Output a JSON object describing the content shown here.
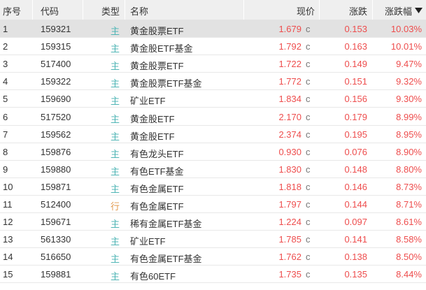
{
  "header": {
    "seq": "序号",
    "code": "代码",
    "type": "类型",
    "name": "名称",
    "price": "现价",
    "change": "涨跌",
    "pct": "涨跌幅",
    "sort_icon": "triangle-down-icon"
  },
  "colors": {
    "up": "#ee4d4d",
    "main_tag": "#4fb5b5",
    "industry_tag": "#e29a4e",
    "selected_row": "#e2e2e2"
  },
  "rows": [
    {
      "seq": "1",
      "code": "159321",
      "type": "主",
      "name": "黄金股票ETF",
      "price": "1.679",
      "flag": "c",
      "change": "0.153",
      "pct": "10.03%"
    },
    {
      "seq": "2",
      "code": "159315",
      "type": "主",
      "name": "黄金股ETF基金",
      "price": "1.792",
      "flag": "c",
      "change": "0.163",
      "pct": "10.01%"
    },
    {
      "seq": "3",
      "code": "517400",
      "type": "主",
      "name": "黄金股票ETF",
      "price": "1.722",
      "flag": "c",
      "change": "0.149",
      "pct": "9.47%"
    },
    {
      "seq": "4",
      "code": "159322",
      "type": "主",
      "name": "黄金股票ETF基金",
      "price": "1.772",
      "flag": "c",
      "change": "0.151",
      "pct": "9.32%"
    },
    {
      "seq": "5",
      "code": "159690",
      "type": "主",
      "name": "矿业ETF",
      "price": "1.834",
      "flag": "c",
      "change": "0.156",
      "pct": "9.30%"
    },
    {
      "seq": "6",
      "code": "517520",
      "type": "主",
      "name": "黄金股ETF",
      "price": "2.170",
      "flag": "c",
      "change": "0.179",
      "pct": "8.99%"
    },
    {
      "seq": "7",
      "code": "159562",
      "type": "主",
      "name": "黄金股ETF",
      "price": "2.374",
      "flag": "c",
      "change": "0.195",
      "pct": "8.95%"
    },
    {
      "seq": "8",
      "code": "159876",
      "type": "主",
      "name": "有色龙头ETF",
      "price": "0.930",
      "flag": "c",
      "change": "0.076",
      "pct": "8.90%"
    },
    {
      "seq": "9",
      "code": "159880",
      "type": "主",
      "name": "有色ETF基金",
      "price": "1.830",
      "flag": "c",
      "change": "0.148",
      "pct": "8.80%"
    },
    {
      "seq": "10",
      "code": "159871",
      "type": "主",
      "name": "有色金属ETF",
      "price": "1.818",
      "flag": "c",
      "change": "0.146",
      "pct": "8.73%"
    },
    {
      "seq": "11",
      "code": "512400",
      "type": "行",
      "name": "有色金属ETF",
      "price": "1.797",
      "flag": "c",
      "change": "0.144",
      "pct": "8.71%"
    },
    {
      "seq": "12",
      "code": "159671",
      "type": "主",
      "name": "稀有金属ETF基金",
      "price": "1.224",
      "flag": "c",
      "change": "0.097",
      "pct": "8.61%"
    },
    {
      "seq": "13",
      "code": "561330",
      "type": "主",
      "name": "矿业ETF",
      "price": "1.785",
      "flag": "c",
      "change": "0.141",
      "pct": "8.58%"
    },
    {
      "seq": "14",
      "code": "516650",
      "type": "主",
      "name": "有色金属ETF基金",
      "price": "1.762",
      "flag": "c",
      "change": "0.138",
      "pct": "8.50%"
    },
    {
      "seq": "15",
      "code": "159881",
      "type": "主",
      "name": "有色60ETF",
      "price": "1.735",
      "flag": "c",
      "change": "0.135",
      "pct": "8.44%"
    }
  ]
}
